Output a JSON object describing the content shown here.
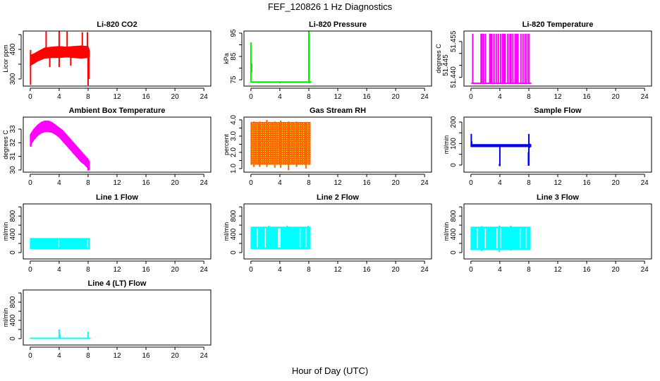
{
  "title": "FEF_120826  1 Hz Diagnostics",
  "xlabel": "Hour of Day (UTC)",
  "chart_data": [
    {
      "type": "line",
      "title": "Li-820 CO2",
      "ylabel": "Licor ppm",
      "color": "#ff0000",
      "xlim": [
        0,
        24
      ],
      "xticks": [
        0,
        4,
        8,
        12,
        16,
        20,
        24
      ],
      "ylim": [
        276,
        462
      ],
      "yticks": [
        300,
        350,
        400,
        450
      ],
      "ylabels": [
        "300",
        "",
        "400",
        ""
      ],
      "band": {
        "x": [
          0,
          0.5,
          1,
          2,
          3,
          4,
          5,
          6,
          7,
          8,
          8.2
        ],
        "low": [
          345,
          352,
          360,
          370,
          372,
          372,
          374,
          372,
          370,
          372,
          375
        ],
        "high": [
          380,
          385,
          392,
          405,
          408,
          410,
          408,
          410,
          412,
          410,
          395
        ]
      },
      "spikes": [
        [
          0.05,
          280,
          398
        ],
        [
          2.2,
          380,
          460
        ],
        [
          2.7,
          340,
          390
        ],
        [
          4.0,
          340,
          462
        ],
        [
          5.1,
          380,
          460
        ],
        [
          5.6,
          345,
          390
        ],
        [
          7.2,
          380,
          458
        ],
        [
          7.9,
          380,
          458
        ],
        [
          8.0,
          278,
          390
        ],
        [
          8.1,
          300,
          380
        ]
      ]
    },
    {
      "type": "line",
      "title": "Li-820 Pressure",
      "ylabel": "kPa",
      "color": "#00ee00",
      "xlim": [
        0,
        24
      ],
      "xticks": [
        0,
        4,
        8,
        12,
        16,
        20,
        24
      ],
      "ylim": [
        72.3,
        95.9
      ],
      "yticks": [
        75,
        80,
        85,
        90,
        95
      ],
      "ylabels": [
        "75",
        "",
        "85",
        "",
        "95"
      ],
      "band": {
        "x": [
          0,
          4,
          8,
          8.3
        ],
        "low": [
          73.8,
          73.8,
          73.8,
          73.8
        ],
        "high": [
          74.2,
          74.2,
          74.2,
          74.2
        ]
      },
      "spikes": [
        [
          0.0,
          74,
          91
        ],
        [
          0.1,
          78,
          82
        ],
        [
          4.0,
          73.5,
          74.2
        ],
        [
          8.0,
          74,
          96
        ],
        [
          8.05,
          73.5,
          95
        ]
      ]
    },
    {
      "type": "line",
      "title": "Li-820 Temperature",
      "ylabel": "degrees C",
      "color": "#ff00ff",
      "xlim": [
        0,
        24
      ],
      "xticks": [
        0,
        4,
        8,
        12,
        16,
        20,
        24
      ],
      "ylim": [
        51.4363,
        51.4594
      ],
      "yticks": [
        51.44,
        51.445,
        51.45,
        51.455
      ],
      "ylabels": [
        "51.440",
        "51.445",
        "",
        "51.455"
      ],
      "band": {
        "x": [
          0.1,
          8.3
        ],
        "low": [
          51.4373,
          51.4373
        ],
        "high": [
          51.4376,
          51.4376
        ]
      },
      "spikes": [
        [
          0.25,
          51.4373,
          51.4583
        ],
        [
          1.4,
          51.4373,
          51.4583
        ],
        [
          1.55,
          51.4373,
          51.4583
        ],
        [
          1.75,
          51.4373,
          51.4583
        ],
        [
          2.0,
          51.4373,
          51.4583
        ],
        [
          2.6,
          51.4373,
          51.4583
        ],
        [
          2.75,
          51.4373,
          51.4583
        ],
        [
          2.9,
          51.4373,
          51.4583
        ],
        [
          3.2,
          51.4373,
          51.4583
        ],
        [
          3.5,
          51.4373,
          51.4583
        ],
        [
          3.8,
          51.4373,
          51.4583
        ],
        [
          4.1,
          51.4373,
          51.4583
        ],
        [
          4.4,
          51.4373,
          51.4583
        ],
        [
          4.55,
          51.4373,
          51.4583
        ],
        [
          4.7,
          51.4373,
          51.4583
        ],
        [
          5.1,
          51.4373,
          51.4583
        ],
        [
          5.4,
          51.4373,
          51.4583
        ],
        [
          5.55,
          51.4373,
          51.4583
        ],
        [
          5.8,
          51.4373,
          51.4583
        ],
        [
          6.1,
          51.4373,
          51.4583
        ],
        [
          6.3,
          51.4373,
          51.4583
        ],
        [
          6.5,
          51.4373,
          51.4583
        ],
        [
          6.9,
          51.4373,
          51.4583
        ],
        [
          7.2,
          51.4373,
          51.4583
        ],
        [
          7.5,
          51.4373,
          51.4583
        ],
        [
          7.75,
          51.4373,
          51.4583
        ],
        [
          8.0,
          51.4373,
          51.4583
        ]
      ]
    },
    {
      "type": "line",
      "title": "Ambient Box Temperature",
      "ylabel": "degrees C",
      "color": "#ff00ff",
      "xlim": [
        0,
        24
      ],
      "xticks": [
        0,
        4,
        8,
        12,
        16,
        20,
        24
      ],
      "ylim": [
        29.84,
        33.88
      ],
      "yticks": [
        30,
        31,
        32,
        33
      ],
      "ylabels": [
        "30",
        "31",
        "32",
        "33"
      ],
      "band": {
        "x": [
          0,
          0.5,
          1,
          1.5,
          2,
          2.5,
          3,
          3.5,
          4,
          4.5,
          5,
          5.5,
          6,
          6.5,
          7,
          7.5,
          8,
          8.2
        ],
        "low": [
          31.8,
          32.2,
          32.5,
          32.7,
          32.8,
          32.8,
          32.75,
          32.6,
          32.4,
          32.1,
          31.8,
          31.5,
          31.2,
          30.9,
          30.6,
          30.4,
          30.1,
          30.0
        ],
        "high": [
          32.6,
          33.0,
          33.3,
          33.5,
          33.6,
          33.6,
          33.5,
          33.3,
          33.1,
          32.9,
          32.6,
          32.3,
          32.0,
          31.7,
          31.4,
          31.1,
          30.8,
          30.6
        ]
      },
      "spikes": [
        [
          0.1,
          31.7,
          32.6
        ],
        [
          8.0,
          29.95,
          30.6
        ]
      ]
    },
    {
      "type": "line",
      "title": "Gas Stream RH",
      "ylabel": "percent",
      "color": "#ff6600",
      "color2": "#ffff00",
      "xlim": [
        0,
        24
      ],
      "xticks": [
        0,
        4,
        8,
        12,
        16,
        20,
        24
      ],
      "ylim": [
        0.78,
        4.17
      ],
      "yticks": [
        1.0,
        1.5,
        2.0,
        2.5,
        3.0,
        3.5,
        4.0
      ],
      "ylabels": [
        "1.0",
        "",
        "2.0",
        "",
        "3.0",
        "",
        "4.0"
      ],
      "band": {
        "x": [
          0,
          8.2
        ],
        "low": [
          1.25,
          1.25
        ],
        "high": [
          3.85,
          3.85
        ]
      },
      "spikes": [
        [
          0.4,
          1.1,
          3.9
        ],
        [
          1.2,
          1.1,
          3.9
        ],
        [
          2.2,
          1.1,
          4.0
        ],
        [
          3.3,
          1.05,
          3.9
        ],
        [
          4.1,
          1.05,
          3.95
        ],
        [
          5.2,
          0.9,
          3.9
        ],
        [
          6.3,
          1.1,
          3.9
        ],
        [
          7.6,
          1.0,
          3.85
        ]
      ]
    },
    {
      "type": "line",
      "title": "Sample Flow",
      "ylabel": "ml/min",
      "color": "#0000ee",
      "xlim": [
        0,
        24
      ],
      "xticks": [
        0,
        4,
        8,
        12,
        16,
        20,
        24
      ],
      "ylim": [
        -33,
        223
      ],
      "yticks": [
        0,
        50,
        100,
        150,
        200
      ],
      "ylabels": [
        "0",
        "",
        "100",
        "",
        "200"
      ],
      "band": {
        "x": [
          0,
          8.3
        ],
        "low": [
          85,
          85
        ],
        "high": [
          96,
          96
        ]
      },
      "spikes": [
        [
          0.05,
          85,
          145
        ],
        [
          0.1,
          85,
          112
        ],
        [
          3.95,
          -5,
          5
        ],
        [
          4.0,
          -5,
          95
        ],
        [
          7.95,
          -3,
          60
        ],
        [
          8.0,
          -3,
          145
        ],
        [
          8.1,
          80,
          100
        ]
      ]
    },
    {
      "type": "line",
      "title": "Line 1 Flow",
      "ylabel": "ml/min",
      "color": "#00ffff",
      "xlim": [
        0,
        24
      ],
      "xticks": [
        0,
        4,
        8,
        12,
        16,
        20,
        24
      ],
      "ylim": [
        -140,
        1065
      ],
      "yticks": [
        0,
        200,
        400,
        600,
        800,
        1000
      ],
      "ylabels": [
        "0",
        "",
        "400",
        "",
        "800",
        ""
      ],
      "band": {
        "x": [
          0,
          8.2
        ],
        "low": [
          80,
          80
        ],
        "high": [
          310,
          310
        ]
      },
      "gaps": [
        3.95,
        7.9
      ],
      "spikes": []
    },
    {
      "type": "line",
      "title": "Line 2 Flow",
      "ylabel": "ml/min",
      "color": "#00ffff",
      "xlim": [
        0,
        24
      ],
      "xticks": [
        0,
        4,
        8,
        12,
        16,
        20,
        24
      ],
      "ylim": [
        -140,
        1065
      ],
      "yticks": [
        0,
        200,
        400,
        600,
        800,
        1000
      ],
      "ylabels": [
        "0",
        "",
        "400",
        "",
        "800",
        ""
      ],
      "band": {
        "x": [
          0,
          8.2
        ],
        "low": [
          80,
          80
        ],
        "high": [
          560,
          560
        ]
      },
      "gaps": [
        0.9,
        2.0,
        3.8,
        4.0,
        6.8,
        7.6
      ],
      "spikes": [
        [
          2.5,
          80,
          590
        ],
        [
          5.0,
          80,
          590
        ],
        [
          7.9,
          80,
          590
        ]
      ]
    },
    {
      "type": "line",
      "title": "Line 3 Flow",
      "ylabel": "ml/min",
      "color": "#00ffff",
      "xlim": [
        0,
        24
      ],
      "xticks": [
        0,
        4,
        8,
        12,
        16,
        20,
        24
      ],
      "ylim": [
        -140,
        1065
      ],
      "yticks": [
        0,
        200,
        400,
        600,
        800,
        1000
      ],
      "ylabels": [
        "0",
        "",
        "400",
        "",
        "800",
        ""
      ],
      "band": {
        "x": [
          0,
          8.2
        ],
        "low": [
          60,
          60
        ],
        "high": [
          560,
          560
        ]
      },
      "gaps": [
        0.9,
        2.0,
        3.6,
        4.1,
        6.8,
        7.6
      ],
      "spikes": [
        [
          3.9,
          10,
          590
        ],
        [
          1.5,
          30,
          580
        ],
        [
          5.5,
          40,
          590
        ]
      ]
    },
    {
      "type": "line",
      "title": "Line 4 (LT) Flow",
      "ylabel": "ml/min",
      "color": "#00ffff",
      "xlim": [
        0,
        24
      ],
      "xticks": [
        0,
        4,
        8,
        12,
        16,
        20,
        24
      ],
      "ylim": [
        -140,
        1065
      ],
      "yticks": [
        0,
        200,
        400,
        600,
        800,
        1000
      ],
      "ylabels": [
        "0",
        "",
        "400",
        "",
        "800",
        ""
      ],
      "band": {
        "x": [
          0,
          8.3
        ],
        "low": [
          0,
          0
        ],
        "high": [
          15,
          15
        ]
      },
      "spikes": [
        [
          4.0,
          0,
          200
        ],
        [
          4.1,
          0,
          100
        ],
        [
          8.0,
          0,
          150
        ]
      ]
    }
  ]
}
